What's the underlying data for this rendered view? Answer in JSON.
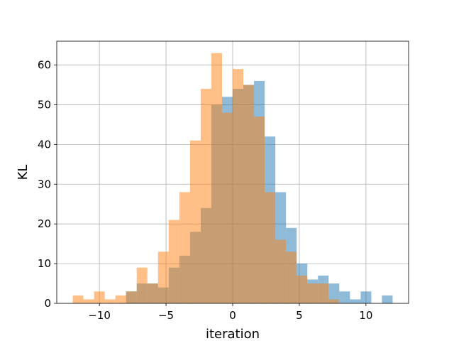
{
  "chart_data": {
    "type": "bar",
    "xlabel": "iteration",
    "ylabel": "KL",
    "xlim": [
      -13.2,
      13.2
    ],
    "ylim": [
      0,
      66
    ],
    "grid": true,
    "x_ticks": [
      -10,
      -5,
      0,
      5,
      10
    ],
    "x_tick_labels": [
      "−10",
      "−5",
      "0",
      "5",
      "10"
    ],
    "y_ticks": [
      0,
      10,
      20,
      30,
      40,
      50,
      60
    ],
    "y_tick_labels": [
      "0",
      "10",
      "20",
      "30",
      "40",
      "50",
      "60"
    ],
    "series": [
      {
        "color": "#1f77b4",
        "opacity": 0.5,
        "bin_edges": [
          -8.0,
          -7.2,
          -6.4,
          -5.6,
          -4.8,
          -4.0,
          -3.2,
          -2.4,
          -1.6,
          -0.8,
          0.0,
          0.8,
          1.6,
          2.4,
          3.2,
          4.0,
          4.8,
          5.6,
          6.4,
          7.2,
          8.0,
          8.8,
          9.6,
          10.4,
          11.2,
          12.0
        ],
        "values": [
          3,
          5,
          5,
          4,
          9,
          12,
          18,
          24,
          50,
          52,
          54,
          55,
          56,
          42,
          28,
          19,
          10,
          6,
          7,
          5,
          3,
          1,
          3,
          0,
          2
        ]
      },
      {
        "color": "#ff7f0e",
        "opacity": 0.5,
        "bin_edges": [
          -12.0,
          -11.2,
          -10.4,
          -9.6,
          -8.8,
          -8.0,
          -7.2,
          -6.4,
          -5.6,
          -4.8,
          -4.0,
          -3.2,
          -2.4,
          -1.6,
          -0.8,
          0.0,
          0.8,
          1.6,
          2.4,
          3.2,
          4.0,
          4.8,
          5.6,
          6.4,
          7.2,
          8.0
        ],
        "values": [
          2,
          1,
          3,
          1,
          2,
          3,
          9,
          5,
          13,
          21,
          28,
          41,
          54,
          63,
          48,
          59,
          55,
          47,
          28,
          16,
          13,
          7,
          5,
          5,
          1
        ]
      }
    ]
  }
}
